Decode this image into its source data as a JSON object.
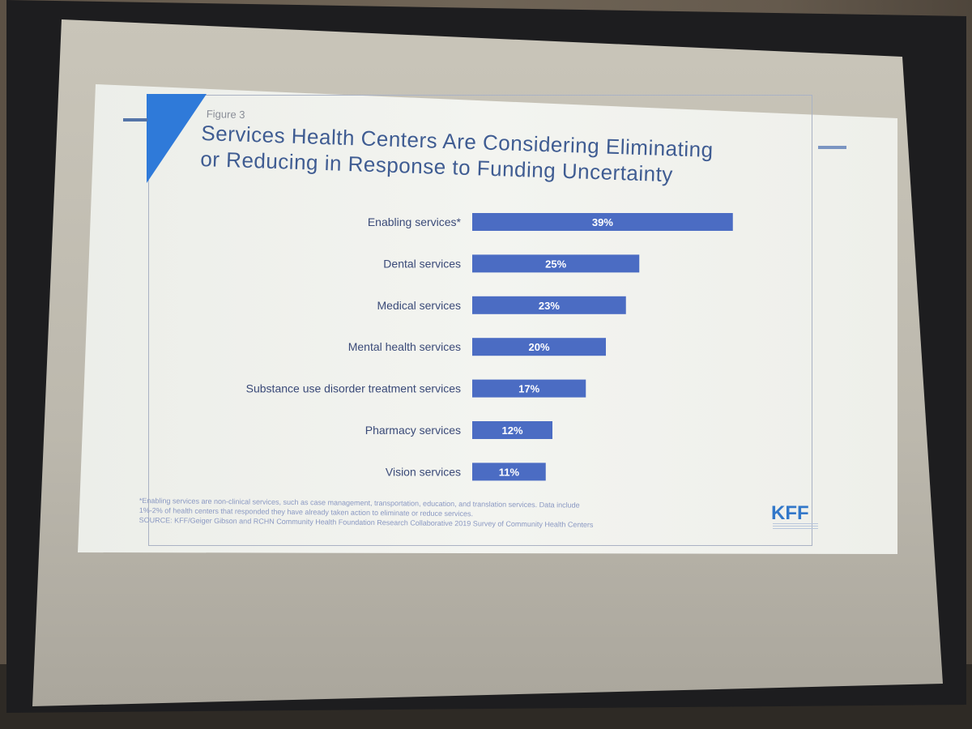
{
  "slide": {
    "figure_label": "Figure 3",
    "title": "Services Health Centers Are Considering Eliminating\nor Reducing in Response to Funding Uncertainty",
    "footnote_lines": [
      "*Enabling services are non-clinical services, such as case management, transportation, education, and translation services. Data include",
      "1%-2% of health centers that responded they have already taken action to eliminate or reduce services.",
      "SOURCE:  KFF/Geiger Gibson and RCHN  Community Health Foundation Research Collaborative 2019 Survey of Community Health Centers"
    ],
    "logo_text": "KFF"
  },
  "chart_data": {
    "type": "bar",
    "orientation": "horizontal",
    "title": "Services Health Centers Are Considering Eliminating or Reducing in Response to Funding Uncertainty",
    "categories": [
      "Enabling services*",
      "Dental services",
      "Medical services",
      "Mental health services",
      "Substance use disorder treatment services",
      "Pharmacy services",
      "Vision services"
    ],
    "values": [
      39,
      25,
      23,
      20,
      17,
      12,
      11
    ],
    "value_labels": [
      "39%",
      "25%",
      "23%",
      "20%",
      "17%",
      "12%",
      "11%"
    ],
    "value_unit": "%",
    "xlim": [
      0,
      40
    ],
    "grid": false,
    "legend": "none",
    "bar_color": "#4b6cc3",
    "label_color": "#ffffff"
  },
  "colors": {
    "title": "#3f5c92",
    "accent": "#2f7ad9",
    "category_text": "#3a4a78"
  }
}
